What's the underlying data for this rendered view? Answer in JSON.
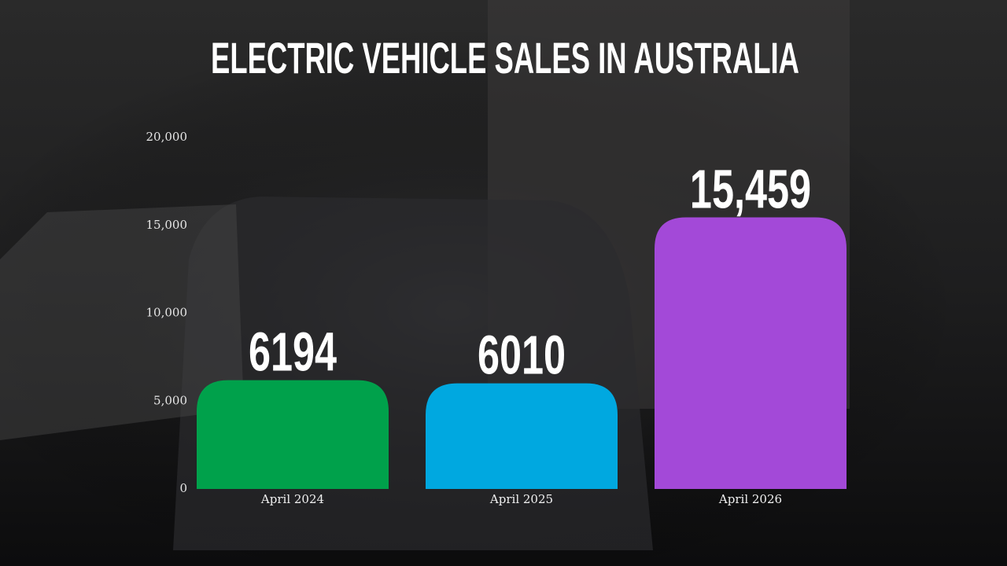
{
  "chart_data": {
    "type": "bar",
    "title": "ELECTRIC VEHICLE SALES IN AUSTRALIA",
    "categories": [
      "April 2024",
      "April 2025",
      "April 2026"
    ],
    "values": [
      6194,
      6010,
      15459
    ],
    "value_labels": [
      "6194",
      "6010",
      "15,459"
    ],
    "colors": [
      "#00a14b",
      "#00a8e0",
      "#a349d8"
    ],
    "ylim": [
      0,
      20000
    ],
    "yticks": [
      0,
      {
        "value": 5000,
        "label": "5,000"
      },
      {
        "value": 10000,
        "label": "10,000"
      },
      {
        "value": 15000,
        "label": "15,000"
      },
      {
        "value": 20000,
        "label": "20,000"
      }
    ],
    "grid": false
  }
}
